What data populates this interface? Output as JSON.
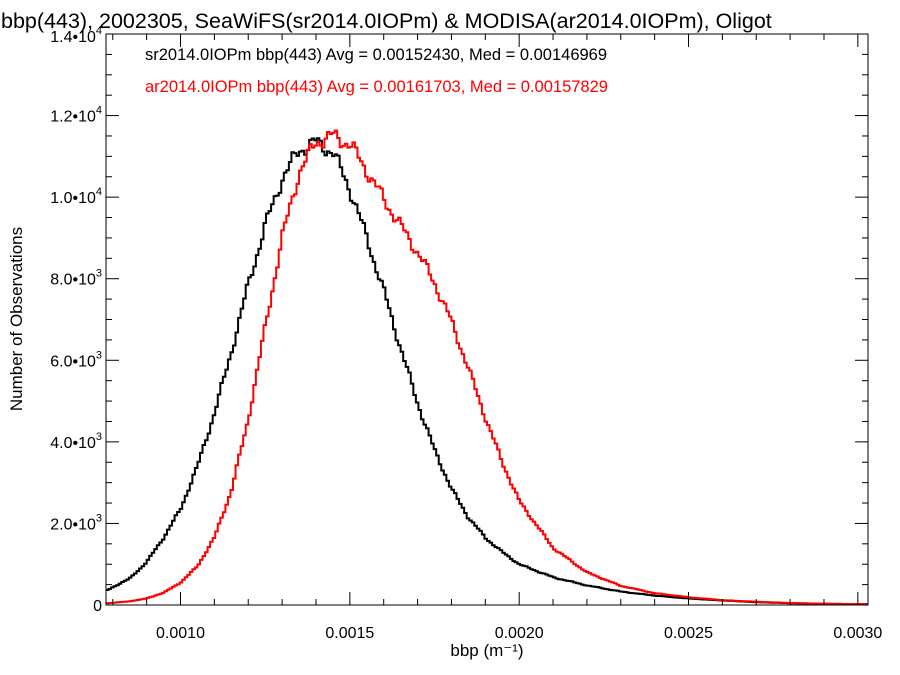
{
  "chart_data": {
    "type": "histogram",
    "title": "bbp(443), 2002305, SeaWiFS(sr2014.0IOPm) & MODISA(ar2014.0IOPm), Oligot",
    "xlabel": "bbp (m⁻¹)",
    "ylabel": "Number of Observations",
    "xlim": [
      0.00078,
      0.00303
    ],
    "ylim": [
      0,
      14000
    ],
    "grid": false,
    "legend_position": "top-left",
    "x_ticks": [
      {
        "value": 0.001,
        "label": "0.0010"
      },
      {
        "value": 0.0015,
        "label": "0.0015"
      },
      {
        "value": 0.002,
        "label": "0.0020"
      },
      {
        "value": 0.0025,
        "label": "0.0025"
      },
      {
        "value": 0.003,
        "label": "0.0030"
      }
    ],
    "y_ticks": [
      {
        "value": 0,
        "mantissa": "0",
        "exponent": ""
      },
      {
        "value": 2000,
        "mantissa": "2.0•10",
        "exponent": "3"
      },
      {
        "value": 4000,
        "mantissa": "4.0•10",
        "exponent": "3"
      },
      {
        "value": 6000,
        "mantissa": "6.0•10",
        "exponent": "3"
      },
      {
        "value": 8000,
        "mantissa": "8.0•10",
        "exponent": "3"
      },
      {
        "value": 10000,
        "mantissa": "1.0•10",
        "exponent": "4"
      },
      {
        "value": 12000,
        "mantissa": "1.2•10",
        "exponent": "4"
      },
      {
        "value": 14000,
        "mantissa": "1.4•10",
        "exponent": "4"
      }
    ],
    "series": [
      {
        "label": "sr2014.0IOPm bbp(443) Avg = 0.00152430, Med = 0.00146969",
        "color": "#000000",
        "points": [
          [
            0.00078,
            350
          ],
          [
            0.00085,
            650
          ],
          [
            0.0009,
            1050
          ],
          [
            0.00095,
            1650
          ],
          [
            0.001,
            2350
          ],
          [
            0.00105,
            3400
          ],
          [
            0.0011,
            4700
          ],
          [
            0.00115,
            6200
          ],
          [
            0.0012,
            7850
          ],
          [
            0.00125,
            9300
          ],
          [
            0.0013,
            10450
          ],
          [
            0.00135,
            11150
          ],
          [
            0.0014,
            11350
          ],
          [
            0.00145,
            11100
          ],
          [
            0.0015,
            10200
          ],
          [
            0.00155,
            9000
          ],
          [
            0.0016,
            7700
          ],
          [
            0.00165,
            6300
          ],
          [
            0.0017,
            4950
          ],
          [
            0.00175,
            3800
          ],
          [
            0.0018,
            2850
          ],
          [
            0.00185,
            2150
          ],
          [
            0.0019,
            1650
          ],
          [
            0.00195,
            1300
          ],
          [
            0.002,
            1000
          ],
          [
            0.0021,
            680
          ],
          [
            0.0022,
            480
          ],
          [
            0.0023,
            330
          ],
          [
            0.0024,
            230
          ],
          [
            0.0025,
            160
          ],
          [
            0.0026,
            110
          ],
          [
            0.0027,
            70
          ],
          [
            0.0028,
            45
          ],
          [
            0.0029,
            30
          ],
          [
            0.00303,
            20
          ]
        ]
      },
      {
        "label": "ar2014.0IOPm bbp(443) Avg = 0.00161703, Med = 0.00157829",
        "color": "#ff0000",
        "points": [
          [
            0.00078,
            40
          ],
          [
            0.00085,
            90
          ],
          [
            0.0009,
            160
          ],
          [
            0.00095,
            300
          ],
          [
            0.001,
            550
          ],
          [
            0.00105,
            950
          ],
          [
            0.0011,
            1650
          ],
          [
            0.00115,
            2800
          ],
          [
            0.0012,
            4550
          ],
          [
            0.00125,
            6800
          ],
          [
            0.0013,
            9000
          ],
          [
            0.00135,
            10600
          ],
          [
            0.0014,
            11350
          ],
          [
            0.00145,
            11500
          ],
          [
            0.0015,
            11300
          ],
          [
            0.00155,
            10650
          ],
          [
            0.0016,
            9950
          ],
          [
            0.00165,
            9300
          ],
          [
            0.0017,
            8650
          ],
          [
            0.00175,
            7900
          ],
          [
            0.0018,
            6950
          ],
          [
            0.00185,
            5800
          ],
          [
            0.0019,
            4600
          ],
          [
            0.00195,
            3500
          ],
          [
            0.002,
            2550
          ],
          [
            0.0021,
            1400
          ],
          [
            0.0022,
            800
          ],
          [
            0.0023,
            470
          ],
          [
            0.0024,
            290
          ],
          [
            0.0025,
            190
          ],
          [
            0.0026,
            120
          ],
          [
            0.0027,
            80
          ],
          [
            0.0028,
            50
          ],
          [
            0.0029,
            30
          ],
          [
            0.00303,
            20
          ]
        ]
      }
    ]
  }
}
